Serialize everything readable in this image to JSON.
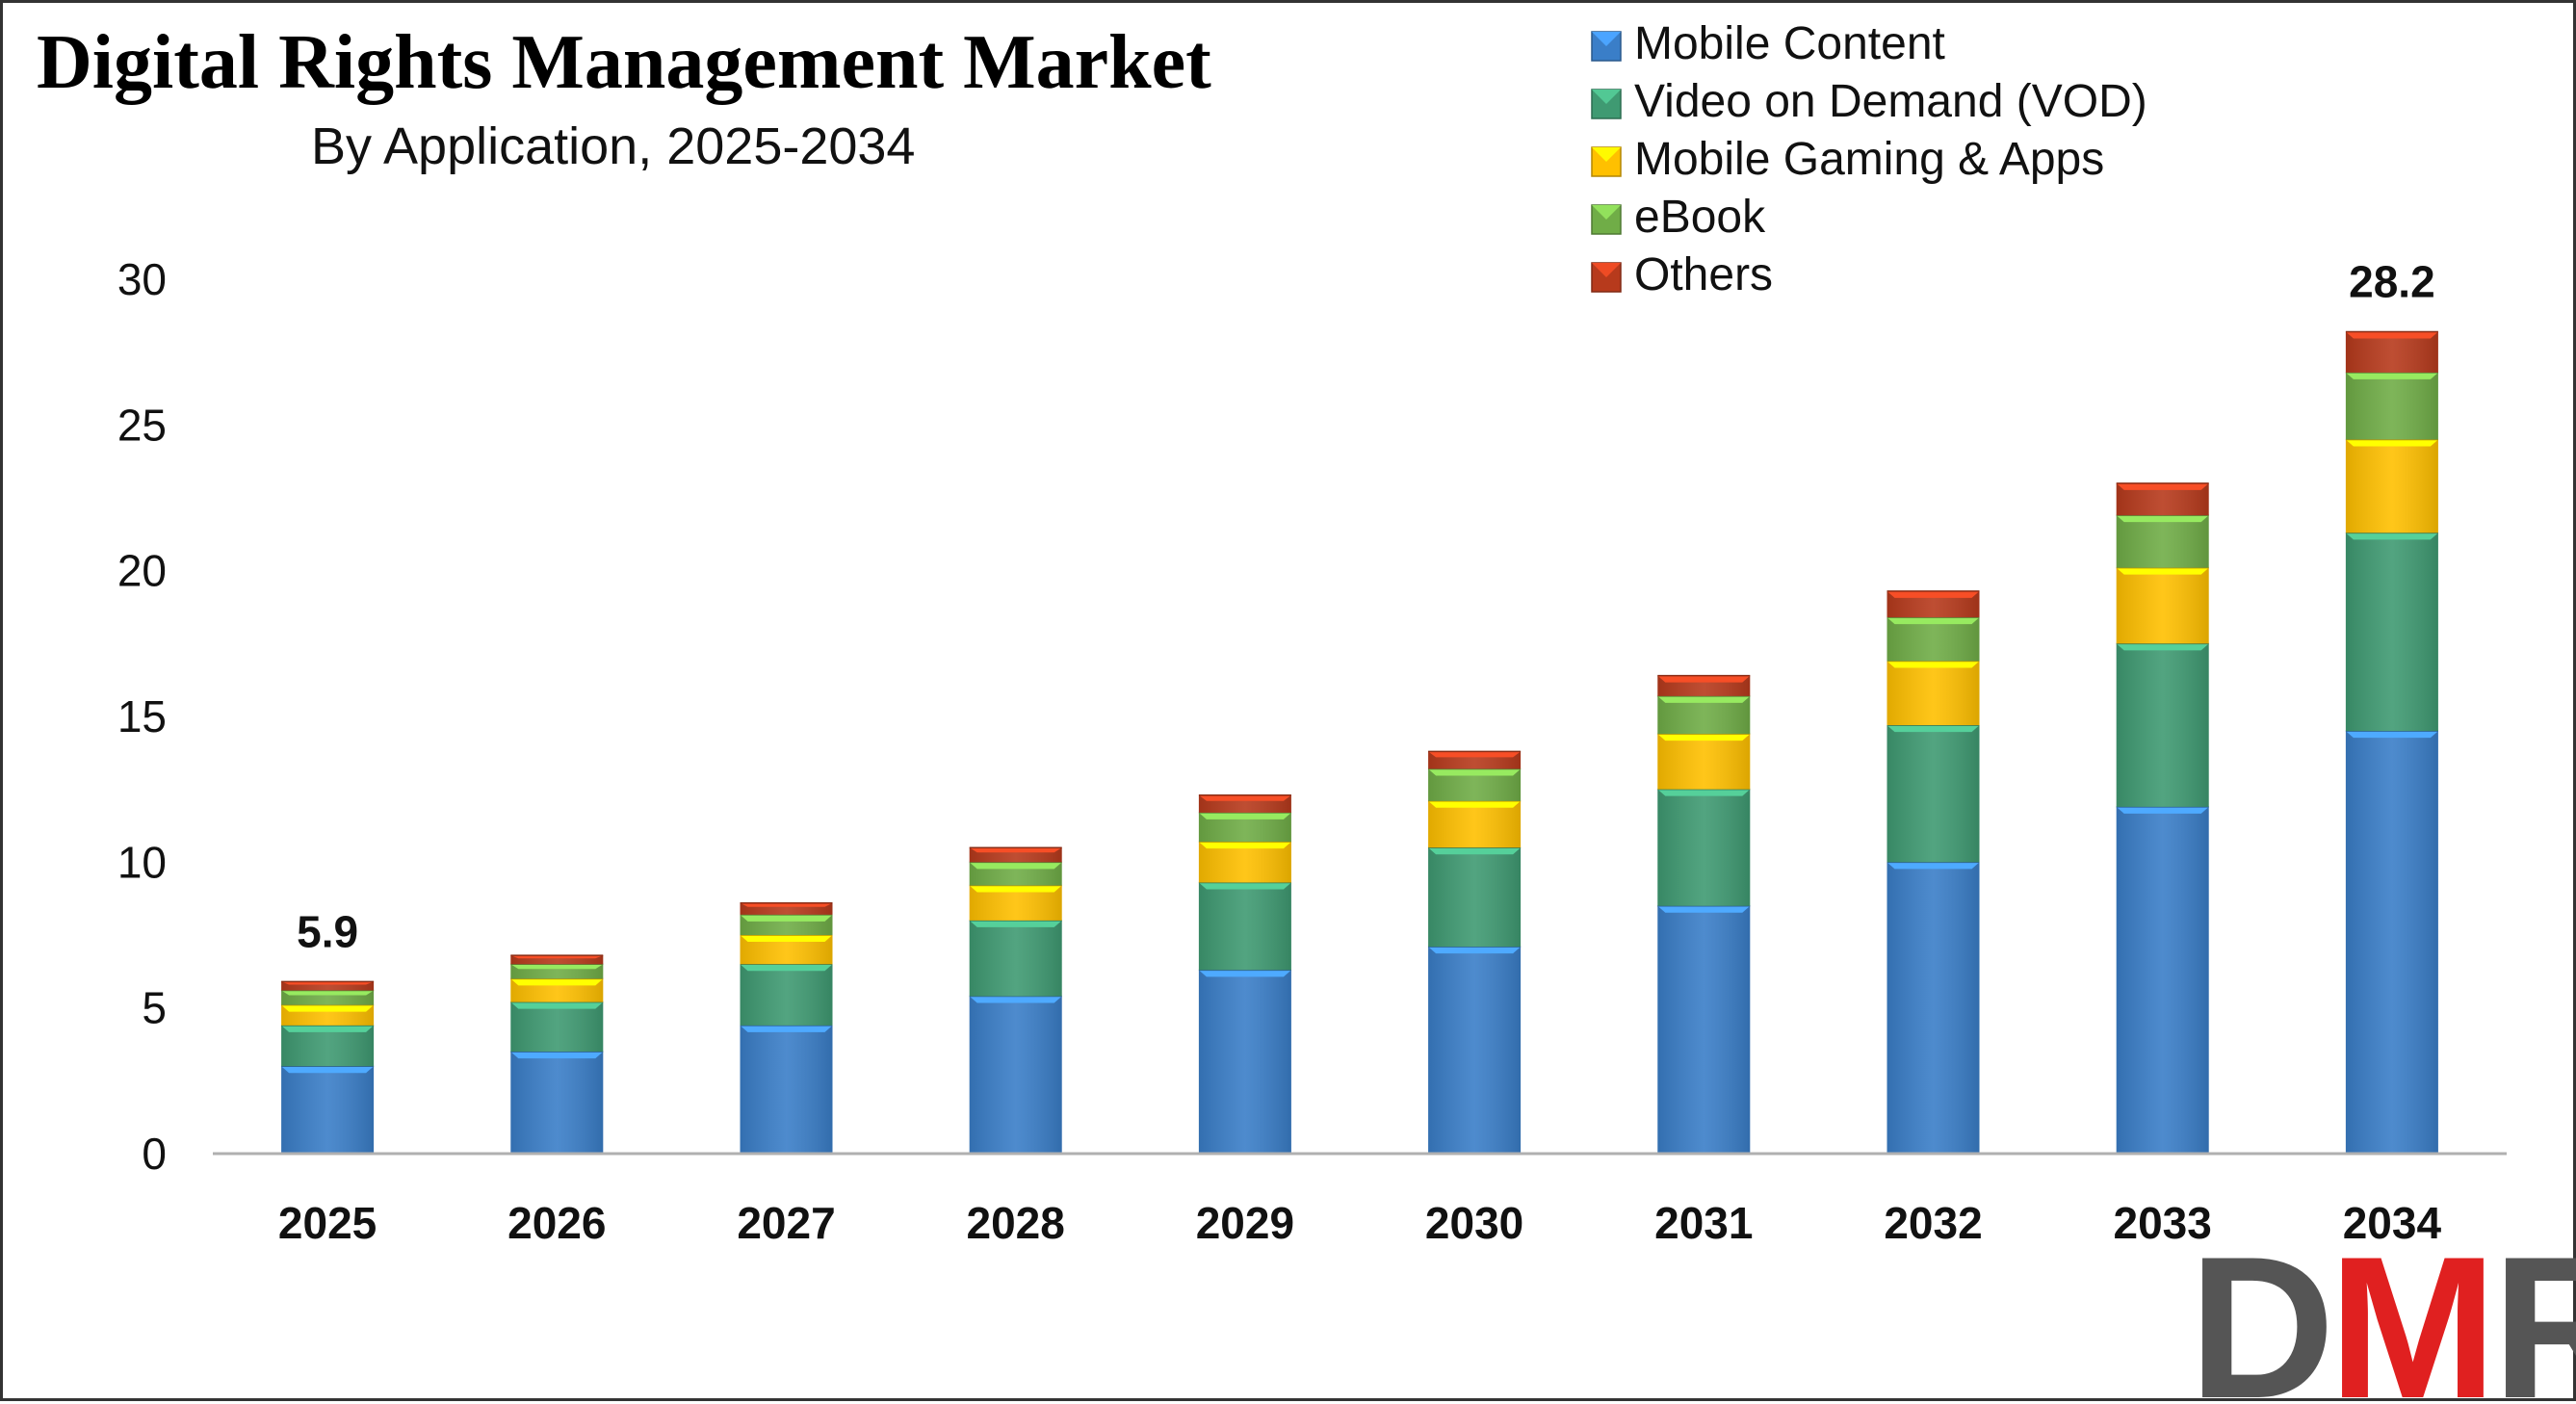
{
  "chart_data": {
    "type": "bar",
    "stacked": true,
    "title": "Digital Rights Management Market",
    "subtitle": "By Application, 2025-2034",
    "xlabel": "",
    "ylabel": "",
    "categories": [
      "2025",
      "2026",
      "2027",
      "2028",
      "2029",
      "2030",
      "2031",
      "2032",
      "2033",
      "2034"
    ],
    "series": [
      {
        "name": "Mobile Content",
        "color": "#3A7EC8",
        "values": [
          3.0,
          3.5,
          4.4,
          5.4,
          6.3,
          7.1,
          8.5,
          10.0,
          11.9,
          14.5
        ]
      },
      {
        "name": "Video on Demand (VOD)",
        "color": "#3F9A72",
        "values": [
          1.4,
          1.7,
          2.1,
          2.6,
          3.0,
          3.4,
          4.0,
          4.7,
          5.6,
          6.8
        ]
      },
      {
        "name": "Mobile Gaming & Apps",
        "color": "#FFC000",
        "values": [
          0.7,
          0.8,
          1.0,
          1.2,
          1.4,
          1.6,
          1.9,
          2.2,
          2.6,
          3.2
        ]
      },
      {
        "name": "eBook",
        "color": "#70AD47",
        "values": [
          0.5,
          0.5,
          0.7,
          0.8,
          1.0,
          1.1,
          1.3,
          1.5,
          1.8,
          2.3
        ]
      },
      {
        "name": "Others",
        "color": "#B73A1C",
        "values": [
          0.3,
          0.3,
          0.4,
          0.5,
          0.6,
          0.6,
          0.7,
          0.9,
          1.1,
          1.4
        ]
      }
    ],
    "totals": [
      5.9,
      6.8,
      8.6,
      10.5,
      12.3,
      13.8,
      16.4,
      19.3,
      23.0,
      28.2
    ],
    "data_labels": [
      {
        "category": "2025",
        "text": "5.9"
      },
      {
        "category": "2034",
        "text": "28.2"
      }
    ],
    "y_ticks": [
      "0",
      "5",
      "10",
      "15",
      "20",
      "25",
      "30"
    ],
    "ylim": [
      0,
      30
    ],
    "grid": false,
    "legend_position": "top-right"
  },
  "logo": {
    "text": "DMR",
    "colors": [
      "#555555",
      "#E02020",
      "#555555"
    ]
  }
}
